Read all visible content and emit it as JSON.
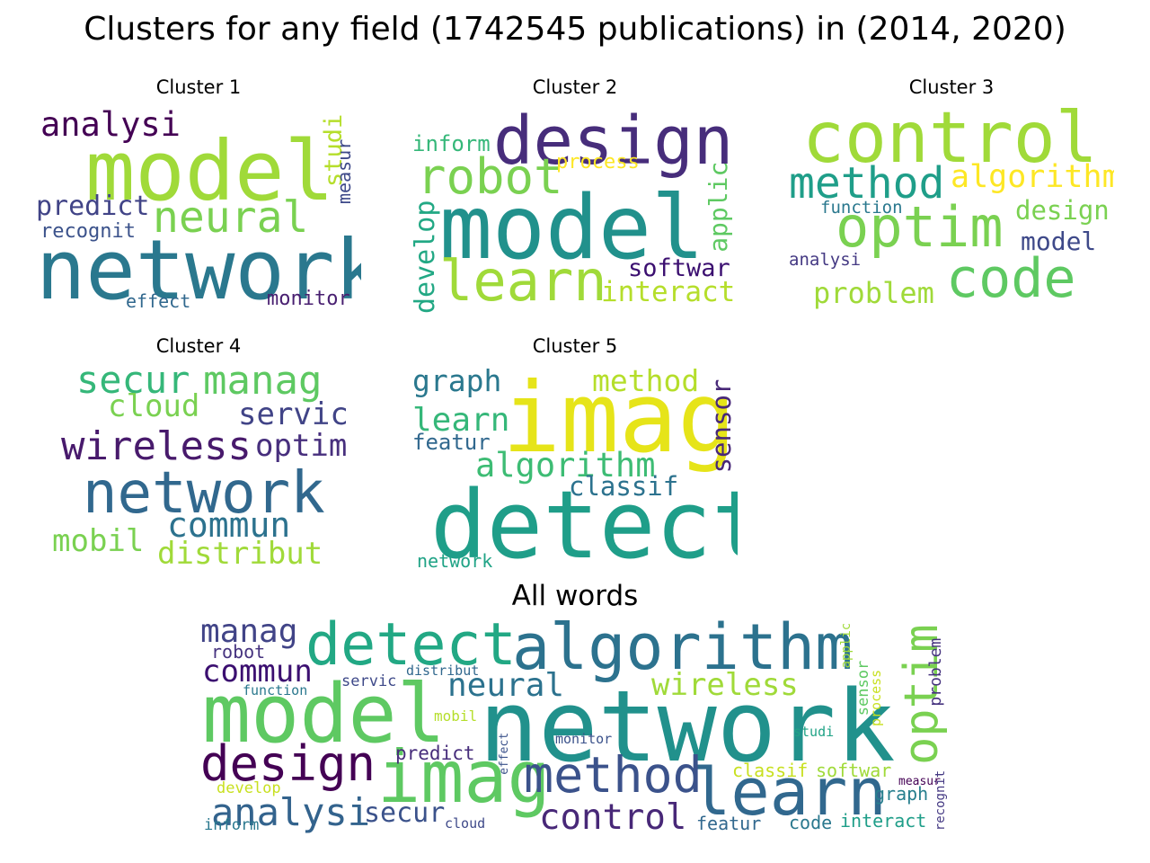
{
  "title": "Clusters for any field (1742545 publications) in (2014, 2020)",
  "chart_data": [
    {
      "type": "wordcloud",
      "title": "Cluster 1",
      "words": [
        {
          "text": "model",
          "weight": 1.0,
          "color": "#a0da39"
        },
        {
          "text": "network",
          "weight": 0.95,
          "color": "#2a788e"
        },
        {
          "text": "neural",
          "weight": 0.55,
          "color": "#7ad151"
        },
        {
          "text": "analysi",
          "weight": 0.45,
          "color": "#440154"
        },
        {
          "text": "predict",
          "weight": 0.35,
          "color": "#414487"
        },
        {
          "text": "recognit",
          "weight": 0.28,
          "color": "#3b528b"
        },
        {
          "text": "monitor",
          "weight": 0.27,
          "color": "#481f70"
        },
        {
          "text": "effect",
          "weight": 0.22,
          "color": "#31688e"
        },
        {
          "text": "studi",
          "weight": 0.25,
          "color": "#b5de2b"
        },
        {
          "text": "measur",
          "weight": 0.22,
          "color": "#3e4989"
        }
      ]
    },
    {
      "type": "wordcloud",
      "title": "Cluster 2",
      "words": [
        {
          "text": "model",
          "weight": 1.0,
          "color": "#21918c"
        },
        {
          "text": "design",
          "weight": 0.85,
          "color": "#472d7b"
        },
        {
          "text": "learn",
          "weight": 0.7,
          "color": "#a0da39"
        },
        {
          "text": "robot",
          "weight": 0.6,
          "color": "#7ad151"
        },
        {
          "text": "develop",
          "weight": 0.32,
          "color": "#22a884"
        },
        {
          "text": "applic",
          "weight": 0.3,
          "color": "#5ec962"
        },
        {
          "text": "softwar",
          "weight": 0.3,
          "color": "#3b0f70"
        },
        {
          "text": "interact",
          "weight": 0.3,
          "color": "#b5de2b"
        },
        {
          "text": "inform",
          "weight": 0.25,
          "color": "#35b779"
        },
        {
          "text": "process",
          "weight": 0.24,
          "color": "#fde725"
        }
      ]
    },
    {
      "type": "wordcloud",
      "title": "Cluster 3",
      "words": [
        {
          "text": "control",
          "weight": 1.0,
          "color": "#a0da39"
        },
        {
          "text": "optim",
          "weight": 0.8,
          "color": "#7ad151"
        },
        {
          "text": "code",
          "weight": 0.75,
          "color": "#5ec962"
        },
        {
          "text": "method",
          "weight": 0.6,
          "color": "#1f9e89"
        },
        {
          "text": "algorithm",
          "weight": 0.45,
          "color": "#fde725"
        },
        {
          "text": "design",
          "weight": 0.38,
          "color": "#7ad151"
        },
        {
          "text": "model",
          "weight": 0.35,
          "color": "#3e4989"
        },
        {
          "text": "problem",
          "weight": 0.38,
          "color": "#a0da39"
        },
        {
          "text": "function",
          "weight": 0.22,
          "color": "#2a788e"
        },
        {
          "text": "analysi",
          "weight": 0.2,
          "color": "#443983"
        }
      ]
    },
    {
      "type": "wordcloud",
      "title": "Cluster 4",
      "words": [
        {
          "text": "network",
          "weight": 1.0,
          "color": "#31688e"
        },
        {
          "text": "wireless",
          "weight": 0.6,
          "color": "#481a6c"
        },
        {
          "text": "secur",
          "weight": 0.5,
          "color": "#35b779"
        },
        {
          "text": "manag",
          "weight": 0.5,
          "color": "#5ec962"
        },
        {
          "text": "commun",
          "weight": 0.5,
          "color": "#2c728e"
        },
        {
          "text": "cloud",
          "weight": 0.4,
          "color": "#7ad151"
        },
        {
          "text": "servic",
          "weight": 0.4,
          "color": "#414487"
        },
        {
          "text": "optim",
          "weight": 0.4,
          "color": "#472f7d"
        },
        {
          "text": "mobil",
          "weight": 0.4,
          "color": "#7ad151"
        },
        {
          "text": "distribut",
          "weight": 0.4,
          "color": "#a0da39"
        }
      ]
    },
    {
      "type": "wordcloud",
      "title": "Cluster 5",
      "words": [
        {
          "text": "imag",
          "weight": 1.0,
          "color": "#e6e419"
        },
        {
          "text": "detect",
          "weight": 0.95,
          "color": "#1f9e89"
        },
        {
          "text": "algorithm",
          "weight": 0.45,
          "color": "#3dbc74"
        },
        {
          "text": "learn",
          "weight": 0.4,
          "color": "#35b779"
        },
        {
          "text": "graph",
          "weight": 0.35,
          "color": "#2a788e"
        },
        {
          "text": "method",
          "weight": 0.35,
          "color": "#b5de2b"
        },
        {
          "text": "classif",
          "weight": 0.3,
          "color": "#2c728e"
        },
        {
          "text": "sensor",
          "weight": 0.3,
          "color": "#482878"
        },
        {
          "text": "featur",
          "weight": 0.25,
          "color": "#31688e"
        },
        {
          "text": "network",
          "weight": 0.2,
          "color": "#20a386"
        }
      ]
    },
    {
      "type": "wordcloud",
      "title": "All words",
      "words": [
        {
          "text": "network",
          "weight": 1.0,
          "color": "#21918c"
        },
        {
          "text": "model",
          "weight": 0.85,
          "color": "#5ec962"
        },
        {
          "text": "algorithm",
          "weight": 0.7,
          "color": "#2c728e"
        },
        {
          "text": "detect",
          "weight": 0.65,
          "color": "#22a884"
        },
        {
          "text": "imag",
          "weight": 0.75,
          "color": "#5ec962"
        },
        {
          "text": "learn",
          "weight": 0.7,
          "color": "#31688e"
        },
        {
          "text": "optim",
          "weight": 0.6,
          "color": "#7ad151"
        },
        {
          "text": "design",
          "weight": 0.6,
          "color": "#440154"
        },
        {
          "text": "method",
          "weight": 0.55,
          "color": "#3b528b"
        },
        {
          "text": "control",
          "weight": 0.4,
          "color": "#482878"
        },
        {
          "text": "analysi",
          "weight": 0.4,
          "color": "#33638d"
        },
        {
          "text": "neural",
          "weight": 0.38,
          "color": "#2c728e"
        },
        {
          "text": "wireless",
          "weight": 0.32,
          "color": "#a0da39"
        },
        {
          "text": "manag",
          "weight": 0.3,
          "color": "#414487"
        },
        {
          "text": "commun",
          "weight": 0.3,
          "color": "#3b0f70"
        },
        {
          "text": "secur",
          "weight": 0.3,
          "color": "#3b528b"
        },
        {
          "text": "predict",
          "weight": 0.22,
          "color": "#472d7b"
        },
        {
          "text": "robot",
          "weight": 0.2,
          "color": "#46337f"
        },
        {
          "text": "servic",
          "weight": 0.18,
          "color": "#3e4989"
        },
        {
          "text": "function",
          "weight": 0.14,
          "color": "#2a788e"
        },
        {
          "text": "distribut",
          "weight": 0.14,
          "color": "#31688e"
        },
        {
          "text": "mobil",
          "weight": 0.14,
          "color": "#b5de2b"
        },
        {
          "text": "monitor",
          "weight": 0.13,
          "color": "#3b528b"
        },
        {
          "text": "effect",
          "weight": 0.12,
          "color": "#3b528b"
        },
        {
          "text": "classif",
          "weight": 0.18,
          "color": "#c8e020"
        },
        {
          "text": "softwar",
          "weight": 0.18,
          "color": "#a0da39"
        },
        {
          "text": "graph",
          "weight": 0.18,
          "color": "#277f8e"
        },
        {
          "text": "code",
          "weight": 0.18,
          "color": "#2a788e"
        },
        {
          "text": "interact",
          "weight": 0.18,
          "color": "#1f9e89"
        },
        {
          "text": "featur",
          "weight": 0.18,
          "color": "#31688e"
        },
        {
          "text": "inform",
          "weight": 0.15,
          "color": "#2a788e"
        },
        {
          "text": "develop",
          "weight": 0.15,
          "color": "#c8e020"
        },
        {
          "text": "cloud",
          "weight": 0.13,
          "color": "#3e4989"
        },
        {
          "text": "studi",
          "weight": 0.13,
          "color": "#20a386"
        },
        {
          "text": "measur",
          "weight": 0.12,
          "color": "#440154"
        },
        {
          "text": "applic",
          "weight": 0.13,
          "color": "#a0da39"
        },
        {
          "text": "sensor",
          "weight": 0.15,
          "color": "#5ec962"
        },
        {
          "text": "process",
          "weight": 0.13,
          "color": "#c8e020"
        },
        {
          "text": "problem",
          "weight": 0.15,
          "color": "#46337f"
        },
        {
          "text": "recognit",
          "weight": 0.12,
          "color": "#443983"
        }
      ]
    }
  ]
}
